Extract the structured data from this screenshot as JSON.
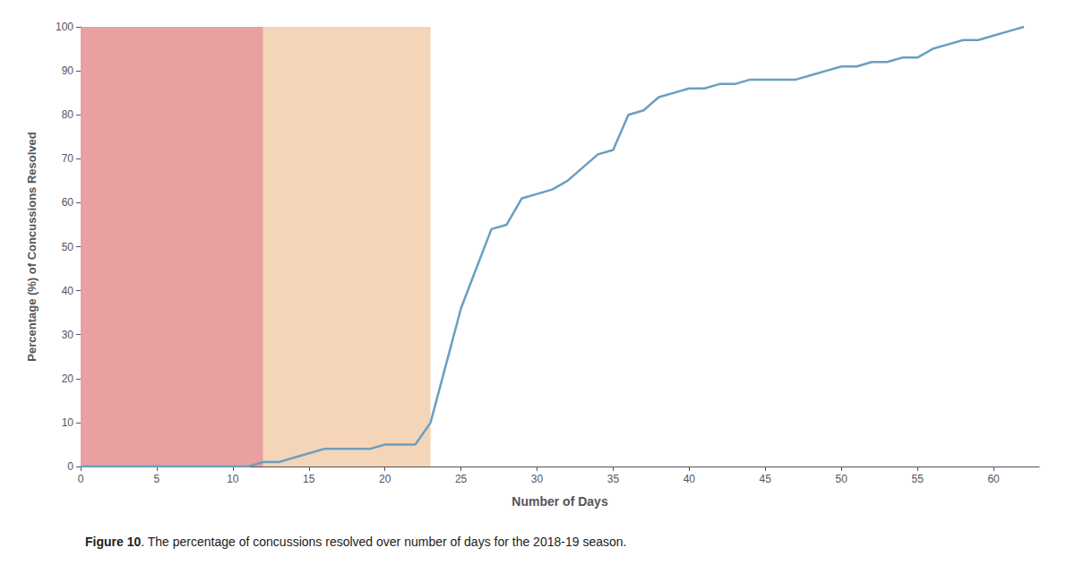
{
  "chart_data": {
    "type": "line",
    "xlabel": "Number of Days",
    "ylabel": "Percentage (%) of Concussions Resolved",
    "caption_bold": "Figure 10",
    "caption": ". The percentage of concussions resolved over number of days for the 2018-19 season.",
    "x": [
      0,
      1,
      2,
      3,
      4,
      5,
      6,
      7,
      8,
      9,
      10,
      11,
      12,
      13,
      14,
      15,
      16,
      17,
      18,
      19,
      20,
      21,
      22,
      23,
      24,
      25,
      26,
      27,
      28,
      29,
      30,
      31,
      32,
      33,
      34,
      35,
      36,
      37,
      38,
      39,
      40,
      41,
      42,
      43,
      44,
      45,
      46,
      47,
      48,
      49,
      50,
      51,
      52,
      53,
      54,
      55,
      56,
      57,
      58,
      59,
      60,
      61,
      62
    ],
    "values": [
      0,
      0,
      0,
      0,
      0,
      0,
      0,
      0,
      0,
      0,
      0,
      0,
      1,
      1,
      2,
      3,
      4,
      4,
      4,
      4,
      5,
      5,
      5,
      10,
      23,
      36,
      45,
      54,
      55,
      61,
      62,
      63,
      65,
      68,
      71,
      72,
      80,
      81,
      84,
      85,
      86,
      86,
      87,
      87,
      88,
      88,
      88,
      88,
      89,
      90,
      91,
      91,
      92,
      92,
      93,
      93,
      95,
      96,
      97,
      97,
      98,
      99,
      100
    ],
    "color": "#6a9fc0",
    "shaded_regions": [
      {
        "x": [
          0,
          12
        ],
        "color": "#e8a0a0"
      },
      {
        "x": [
          12,
          23
        ],
        "color": "#f5d5b8"
      }
    ],
    "xlim": [
      0,
      63
    ],
    "ylim": [
      0,
      100
    ],
    "xticks": [
      0,
      5,
      10,
      15,
      20,
      25,
      30,
      35,
      40,
      45,
      50,
      55,
      60
    ],
    "yticks": [
      0,
      10,
      20,
      30,
      40,
      50,
      60,
      70,
      80,
      90,
      100
    ],
    "grid": false
  }
}
